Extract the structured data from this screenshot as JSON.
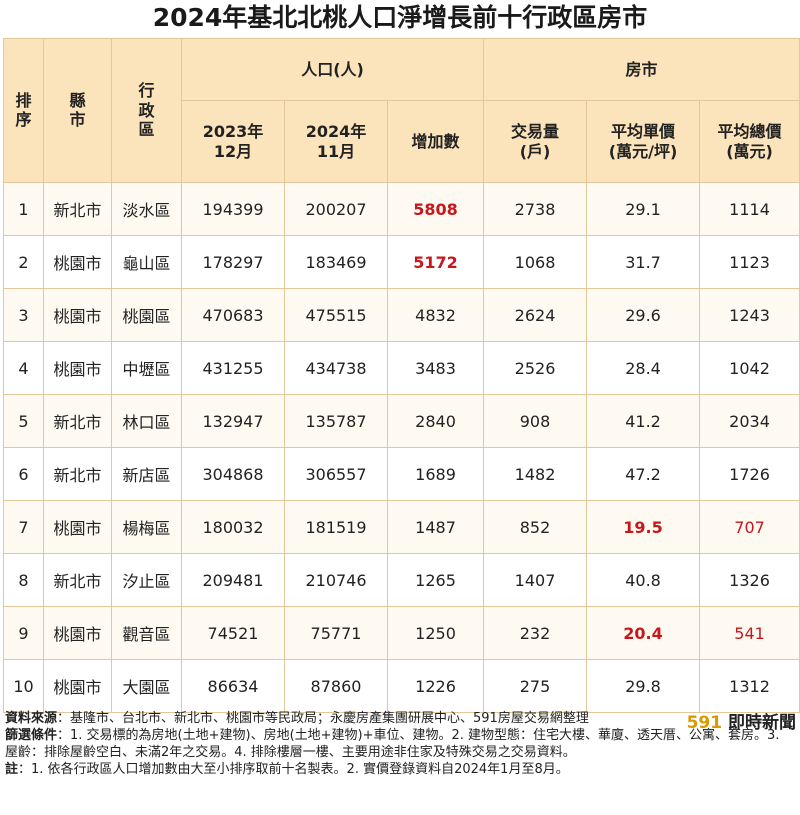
{
  "title": "2024年基北北桃人口淨增長前十行政區房市",
  "header": {
    "rank": "排序",
    "county": "縣市",
    "district": "行政區",
    "population_group": "人口(人)",
    "housing_group": "房市",
    "pop_2023": "2023年12月",
    "pop_2024": "2024年11月",
    "increase": "增加數",
    "volume": "交易量(戶)",
    "unit_price": "平均單價(萬元/坪)",
    "total_price": "平均總價(萬元)"
  },
  "rows": [
    {
      "rank": "1",
      "county": "新北市",
      "district": "淡水區",
      "pop2023": "194399",
      "pop2024": "200207",
      "increase": "5808",
      "volume": "2738",
      "unit_price": "29.1",
      "total_price": "1114"
    },
    {
      "rank": "2",
      "county": "桃園市",
      "district": "龜山區",
      "pop2023": "178297",
      "pop2024": "183469",
      "increase": "5172",
      "volume": "1068",
      "unit_price": "31.7",
      "total_price": "1123"
    },
    {
      "rank": "3",
      "county": "桃園市",
      "district": "桃園區",
      "pop2023": "470683",
      "pop2024": "475515",
      "increase": "4832",
      "volume": "2624",
      "unit_price": "29.6",
      "total_price": "1243"
    },
    {
      "rank": "4",
      "county": "桃園市",
      "district": "中壢區",
      "pop2023": "431255",
      "pop2024": "434738",
      "increase": "3483",
      "volume": "2526",
      "unit_price": "28.4",
      "total_price": "1042"
    },
    {
      "rank": "5",
      "county": "新北市",
      "district": "林口區",
      "pop2023": "132947",
      "pop2024": "135787",
      "increase": "2840",
      "volume": "908",
      "unit_price": "41.2",
      "total_price": "2034"
    },
    {
      "rank": "6",
      "county": "新北市",
      "district": "新店區",
      "pop2023": "304868",
      "pop2024": "306557",
      "increase": "1689",
      "volume": "1482",
      "unit_price": "47.2",
      "total_price": "1726"
    },
    {
      "rank": "7",
      "county": "桃園市",
      "district": "楊梅區",
      "pop2023": "180032",
      "pop2024": "181519",
      "increase": "1487",
      "volume": "852",
      "unit_price": "19.5",
      "total_price": "707"
    },
    {
      "rank": "8",
      "county": "新北市",
      "district": "汐止區",
      "pop2023": "209481",
      "pop2024": "210746",
      "increase": "1265",
      "volume": "1407",
      "unit_price": "40.8",
      "total_price": "1326"
    },
    {
      "rank": "9",
      "county": "桃園市",
      "district": "觀音區",
      "pop2023": "74521",
      "pop2024": "75771",
      "increase": "1250",
      "volume": "232",
      "unit_price": "20.4",
      "total_price": "541"
    },
    {
      "rank": "10",
      "county": "桃園市",
      "district": "大園區",
      "pop2023": "86634",
      "pop2024": "87860",
      "increase": "1226",
      "volume": "275",
      "unit_price": "29.8",
      "total_price": "1312"
    }
  ],
  "highlights": {
    "increase_rows": [
      0,
      1
    ],
    "price_rows": [
      6,
      8
    ]
  },
  "footer": {
    "source_label": "資料來源",
    "source_text": "：基隆市、台北市、新北市、桃園市等民政局；永慶房產集團研展中心、591房屋交易網整理",
    "filter_label": "篩選條件",
    "filter_text": "：1. 交易標的為房地(土地+建物)、房地(土地+建物)+車位、建物。2. 建物型態：住宅大樓、華廈、透天厝、公寓、套房。3. 屋齡：排除屋齡空白、未滿2年之交易。4. 排除樓層一樓、主要用途非住家及特殊交易之交易資料。",
    "note_label": "註",
    "note_text": "：1. 依各行政區人口增加數由大至小排序取前十名製表。2. 實價登錄資料自2024年1月至8月。"
  },
  "brand": {
    "number": "591",
    "text": "即時新聞"
  },
  "colors": {
    "header_bg": "#fbe3bb",
    "border": "#e2c79a",
    "highlight_red": "#c8161d",
    "brand_gold": "#d99a00"
  }
}
